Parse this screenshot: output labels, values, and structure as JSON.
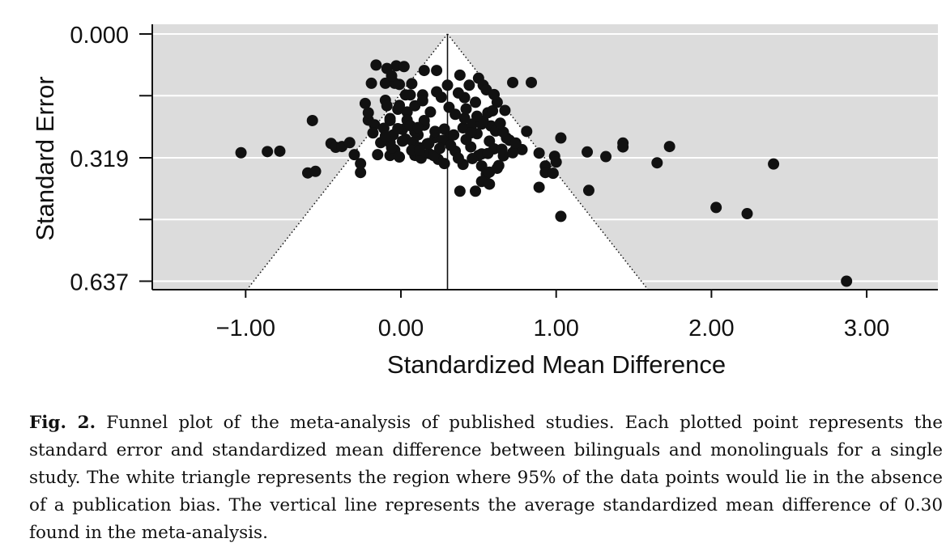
{
  "chart_data": {
    "type": "scatter",
    "xlabel": "Standardized Mean Difference",
    "ylabel": "Standard Error",
    "xlim": [
      -1.6,
      3.55
    ],
    "ylim": [
      0.0,
      0.67
    ],
    "y_inverted": true,
    "x_ticks": [
      -1.0,
      0.0,
      1.0,
      2.0,
      3.0
    ],
    "x_tick_labels": [
      "−1.00",
      "0.00",
      "1.00",
      "2.00",
      "3.00"
    ],
    "y_ticks": [
      0.0,
      0.319,
      0.637
    ],
    "y_tick_labels": [
      "0.000",
      "0.319",
      "0.637"
    ],
    "y_gridlines": [
      0.0,
      0.159,
      0.319,
      0.478,
      0.637
    ],
    "mean_line": 0.3,
    "funnel": {
      "apex": [
        0.3,
        0.0
      ],
      "multiplier": 1.96
    },
    "background_color": "#dcdcdc",
    "funnel_color": "#ffffff",
    "point_color": "#111111",
    "points": [
      [
        -1.03,
        0.306
      ],
      [
        -0.86,
        0.303
      ],
      [
        -0.78,
        0.302
      ],
      [
        -0.6,
        0.358
      ],
      [
        -0.55,
        0.354
      ],
      [
        -0.57,
        0.223
      ],
      [
        -0.45,
        0.282
      ],
      [
        -0.42,
        0.292
      ],
      [
        -0.38,
        0.29
      ],
      [
        -0.33,
        0.28
      ],
      [
        -0.3,
        0.311
      ],
      [
        -0.26,
        0.357
      ],
      [
        -0.26,
        0.334
      ],
      [
        -0.23,
        0.179
      ],
      [
        -0.21,
        0.222
      ],
      [
        -0.19,
        0.127
      ],
      [
        -0.17,
        0.234
      ],
      [
        -0.1,
        0.171
      ],
      [
        -0.09,
        0.185
      ],
      [
        -0.07,
        0.218
      ],
      [
        -0.07,
        0.28
      ],
      [
        -0.07,
        0.313
      ],
      [
        -0.05,
        0.26
      ],
      [
        -0.04,
        0.299
      ],
      [
        -0.02,
        0.194
      ],
      [
        -0.01,
        0.317
      ],
      [
        0.01,
        0.246
      ],
      [
        0.03,
        0.271
      ],
      [
        0.04,
        0.201
      ],
      [
        0.06,
        0.157
      ],
      [
        0.08,
        0.279
      ],
      [
        0.09,
        0.313
      ],
      [
        0.11,
        0.26
      ],
      [
        0.12,
        0.293
      ],
      [
        0.13,
        0.32
      ],
      [
        0.15,
        0.235
      ],
      [
        0.17,
        0.283
      ],
      [
        0.18,
        0.308
      ],
      [
        0.22,
        0.267
      ],
      [
        0.24,
        0.323
      ],
      [
        0.28,
        0.245
      ],
      [
        0.35,
        0.302
      ],
      [
        0.4,
        0.336
      ],
      [
        0.45,
        0.291
      ],
      [
        0.49,
        0.257
      ],
      [
        0.5,
        0.313
      ],
      [
        0.55,
        0.361
      ],
      [
        0.57,
        0.276
      ],
      [
        0.6,
        0.296
      ],
      [
        0.63,
        0.339
      ],
      [
        0.66,
        0.314
      ],
      [
        0.68,
        0.268
      ],
      [
        0.74,
        0.296
      ],
      [
        0.78,
        0.298
      ],
      [
        0.81,
        0.251
      ],
      [
        -0.01,
        0.13
      ],
      [
        0.04,
        0.222
      ],
      [
        -0.07,
        0.223
      ],
      [
        0.09,
        0.252
      ],
      [
        0.15,
        0.223
      ],
      [
        -0.13,
        0.28
      ],
      [
        0.31,
        0.267
      ],
      [
        0.19,
        0.201
      ],
      [
        -0.1,
        0.127
      ],
      [
        -0.04,
        0.127
      ],
      [
        0.03,
        0.157
      ],
      [
        0.14,
        0.157
      ],
      [
        -0.21,
        0.203
      ],
      [
        -0.15,
        0.311
      ],
      [
        0.07,
        0.3
      ],
      [
        0.21,
        0.313
      ],
      [
        0.28,
        0.334
      ],
      [
        0.37,
        0.32
      ],
      [
        0.42,
        0.272
      ],
      [
        0.46,
        0.321
      ],
      [
        0.52,
        0.309
      ],
      [
        0.58,
        0.237
      ],
      [
        0.61,
        0.25
      ],
      [
        0.66,
        0.253
      ],
      [
        0.7,
        0.274
      ],
      [
        0.72,
        0.306
      ],
      [
        -0.18,
        0.255
      ],
      [
        -0.11,
        0.243
      ],
      [
        -0.02,
        0.244
      ],
      [
        0.06,
        0.236
      ],
      [
        0.11,
        0.241
      ],
      [
        0.22,
        0.251
      ],
      [
        0.27,
        0.274
      ],
      [
        0.34,
        0.26
      ],
      [
        0.4,
        0.242
      ],
      [
        0.46,
        0.232
      ],
      [
        0.53,
        0.224
      ],
      [
        0.64,
        0.23
      ],
      [
        -0.03,
        0.082
      ],
      [
        0.02,
        0.084
      ],
      [
        -0.09,
        0.089
      ],
      [
        0.15,
        0.094
      ],
      [
        0.23,
        0.094
      ],
      [
        -0.16,
        0.08
      ],
      [
        0.38,
        0.106
      ],
      [
        0.5,
        0.114
      ],
      [
        -0.06,
        0.108
      ],
      [
        0.07,
        0.128
      ],
      [
        0.26,
        0.163
      ],
      [
        0.31,
        0.189
      ],
      [
        0.35,
        0.207
      ],
      [
        0.41,
        0.217
      ],
      [
        0.52,
        0.232
      ],
      [
        0.56,
        0.203
      ],
      [
        0.59,
        0.198
      ],
      [
        0.48,
        0.176
      ],
      [
        0.41,
        0.164
      ],
      [
        0.37,
        0.152
      ],
      [
        0.44,
        0.132
      ],
      [
        0.53,
        0.132
      ],
      [
        0.55,
        0.144
      ],
      [
        0.62,
        0.176
      ],
      [
        0.67,
        0.197
      ],
      [
        0.6,
        0.156
      ],
      [
        -0.01,
        0.184
      ],
      [
        0.09,
        0.185
      ],
      [
        0.14,
        0.172
      ],
      [
        0.23,
        0.149
      ],
      [
        0.3,
        0.132
      ],
      [
        0.18,
        0.282
      ],
      [
        0.25,
        0.295
      ],
      [
        0.12,
        0.3
      ],
      [
        0.01,
        0.276
      ],
      [
        -0.06,
        0.293
      ],
      [
        -0.1,
        0.263
      ],
      [
        0.32,
        0.287
      ],
      [
        0.45,
        0.255
      ],
      [
        0.49,
        0.212
      ],
      [
        0.42,
        0.193
      ],
      [
        0.52,
        0.34
      ],
      [
        0.56,
        0.308
      ],
      [
        0.65,
        0.297
      ],
      [
        0.74,
        0.281
      ],
      [
        0.72,
        0.125
      ],
      [
        0.84,
        0.125
      ],
      [
        0.38,
        0.405
      ],
      [
        0.48,
        0.405
      ],
      [
        0.52,
        0.38
      ],
      [
        0.57,
        0.356
      ],
      [
        0.57,
        0.387
      ],
      [
        0.62,
        0.346
      ],
      [
        0.89,
        0.307
      ],
      [
        0.93,
        0.34
      ],
      [
        0.93,
        0.357
      ],
      [
        0.99,
        0.315
      ],
      [
        1.0,
        0.33
      ],
      [
        0.98,
        0.359
      ],
      [
        0.89,
        0.395
      ],
      [
        1.03,
        0.47
      ],
      [
        1.03,
        0.268
      ],
      [
        1.2,
        0.304
      ],
      [
        1.32,
        0.316
      ],
      [
        1.21,
        0.403
      ],
      [
        1.43,
        0.281
      ],
      [
        1.43,
        0.291
      ],
      [
        1.65,
        0.332
      ],
      [
        1.73,
        0.29
      ],
      [
        2.03,
        0.447
      ],
      [
        2.23,
        0.463
      ],
      [
        2.4,
        0.335
      ],
      [
        2.87,
        0.637
      ]
    ]
  },
  "caption": {
    "label": "Fig. 2.",
    "text": "Funnel plot of the meta-analysis of published studies. Each plotted point represents the standard error and standardized mean difference between bilinguals and monolinguals for a single study. The white triangle represents the region where 95% of the data points would lie in the absence of a publication bias. The vertical line represents the average standardized mean difference of 0.30 found in the meta-analysis."
  }
}
